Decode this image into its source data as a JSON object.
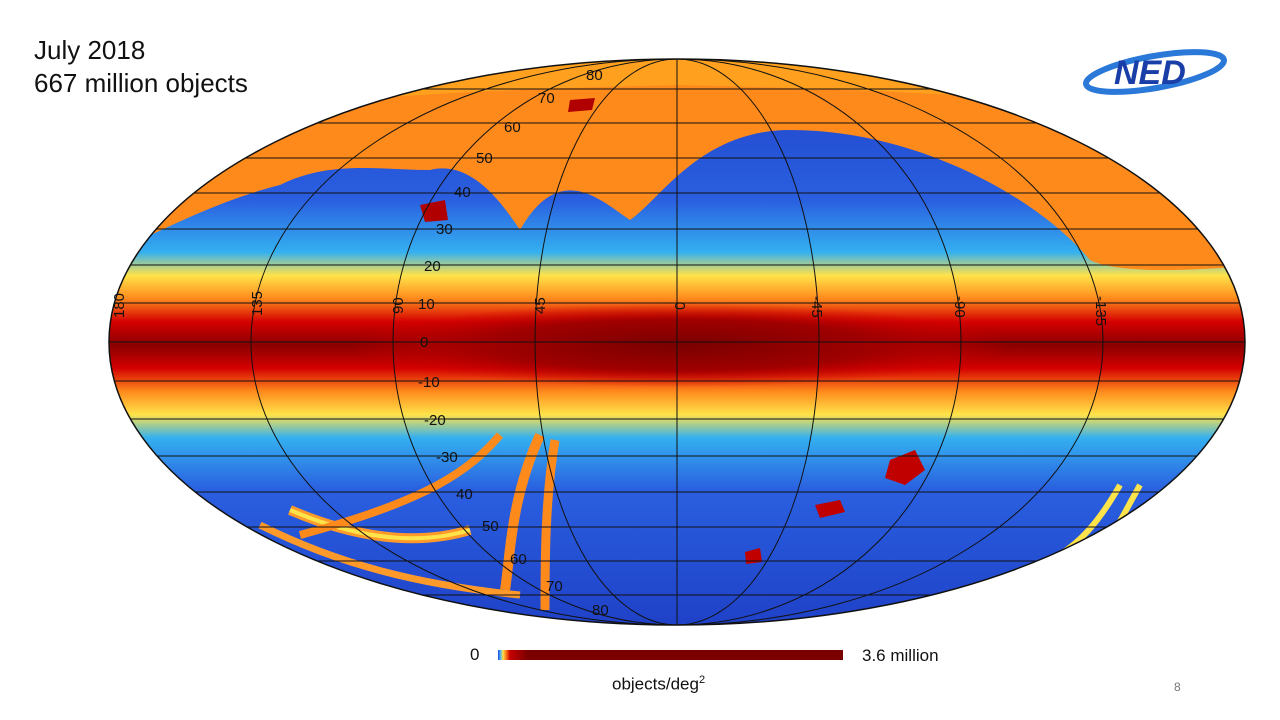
{
  "title": {
    "line1": "July 2018",
    "line2": "667 million objects"
  },
  "logo": {
    "text": "NED",
    "color": "#1a3ea8",
    "accent": "#2a78d8"
  },
  "map": {
    "projection": "all-sky ellipse",
    "lat_labels": [
      "80",
      "70",
      "60",
      "50",
      "40",
      "30",
      "20",
      "10",
      "0",
      "-10",
      "-20",
      "-30",
      "40",
      "50",
      "60",
      "70",
      "80"
    ],
    "lon_labels": [
      "180",
      "135",
      "90",
      "45",
      "0",
      "-45",
      "-90",
      "-135"
    ],
    "colors": {
      "low": "#1e3fc6",
      "mid": "#29b6f6",
      "yellow": "#ffe34a",
      "orange": "#ff8a1c",
      "high": "#d40000",
      "peak": "#7a0000"
    }
  },
  "colorbar": {
    "min_label": "0",
    "max_label": "3.6 million",
    "unit_label": "objects/deg",
    "unit_superscript": "2"
  },
  "page_number": "8"
}
